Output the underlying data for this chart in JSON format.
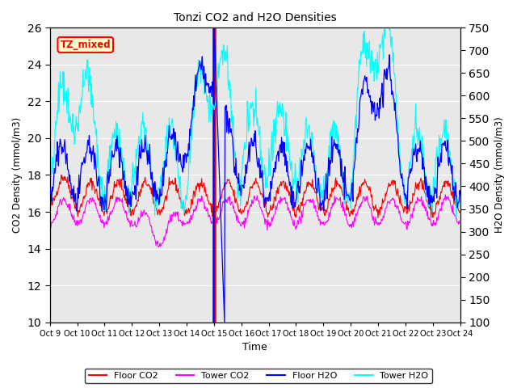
{
  "title": "Tonzi CO2 and H2O Densities",
  "xlabel": "Time",
  "ylabel_left": "CO2 Density (mmol/m3)",
  "ylabel_right": "H2O Density (mmol/m3)",
  "x_tick_labels": [
    "Oct 9",
    "Oct 10",
    "Oct 11",
    "Oct 12",
    "Oct 13",
    "Oct 14",
    "Oct 15",
    "Oct 16",
    "Oct 17",
    "Oct 18",
    "Oct 19",
    "Oct 20",
    "Oct 21",
    "Oct 22",
    "Oct 23",
    "Oct 24"
  ],
  "ylim_left": [
    10,
    26
  ],
  "ylim_right": [
    100,
    750
  ],
  "yticks_left": [
    10,
    12,
    14,
    16,
    18,
    20,
    22,
    24,
    26
  ],
  "yticks_right": [
    100,
    150,
    200,
    250,
    300,
    350,
    400,
    450,
    500,
    550,
    600,
    650,
    700,
    750
  ],
  "legend_labels": [
    "Floor CO2",
    "Tower CO2",
    "Floor H2O",
    "Tower H2O"
  ],
  "legend_colors": [
    "red",
    "magenta",
    "blue",
    "cyan"
  ],
  "annotation_label": "TZ_mixed",
  "background_color": "#e8e8e8",
  "grid_color": "white",
  "floor_co2_color": "red",
  "tower_co2_color": "magenta",
  "floor_h2o_color": "blue",
  "tower_h2o_color": "cyan",
  "n_days": 15,
  "points_per_day": 48,
  "vline_x": 6.0
}
